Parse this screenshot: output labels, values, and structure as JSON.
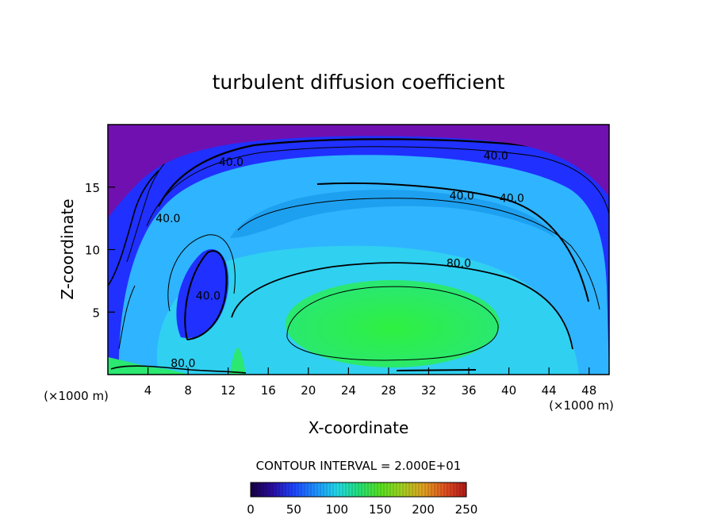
{
  "chart_data": {
    "type": "heatmap",
    "title": "turbulent diffusion coefficient",
    "xlabel": "X-coordinate",
    "ylabel": "Z-coordinate",
    "x_unit": "(×1000 m)",
    "z_unit": "(×1000 m)",
    "xlim": [
      0,
      50
    ],
    "ylim": [
      0,
      20
    ],
    "x_ticks": [
      "4",
      "8",
      "12",
      "16",
      "20",
      "24",
      "28",
      "32",
      "36",
      "40",
      "44",
      "48"
    ],
    "y_ticks": [
      "5",
      "10",
      "15"
    ],
    "contour_labels": [
      {
        "text": "40.0",
        "x": 12.3,
        "z": 16.7
      },
      {
        "text": "40.0",
        "x": 38.7,
        "z": 17.2
      },
      {
        "text": "40.0",
        "x": 35.3,
        "z": 14.0
      },
      {
        "text": "40.0",
        "x": 40.3,
        "z": 13.8
      },
      {
        "text": "80.0",
        "x": 35.0,
        "z": 8.6
      },
      {
        "text": "40.0",
        "x": 6.0,
        "z": 12.2
      },
      {
        "text": "40.0",
        "x": 10.0,
        "z": 6.0
      },
      {
        "text": "80.0",
        "x": 7.5,
        "z": 0.6
      }
    ],
    "contour_interval_label": "CONTOUR INTERVAL = 2.000E+01",
    "colorbar": {
      "min": 0,
      "max": 250,
      "ticks": [
        "0",
        "50",
        "100",
        "150",
        "200",
        "250"
      ],
      "colors": [
        "#160040",
        "#2a0da0",
        "#1e44ff",
        "#1e90ff",
        "#22d8e8",
        "#22e07a",
        "#55e020",
        "#a0d020",
        "#e0a020",
        "#e05020",
        "#b01818"
      ]
    },
    "region_colors": {
      "top_layer": "#7010b0",
      "outer_band": "#2030ff",
      "cyan_band": "#2fb4ff",
      "mid_band": "#1ea0f0",
      "inner_cyan": "#30d0f0",
      "core_green": "#2ae870",
      "core_center": "#2ef040"
    }
  }
}
